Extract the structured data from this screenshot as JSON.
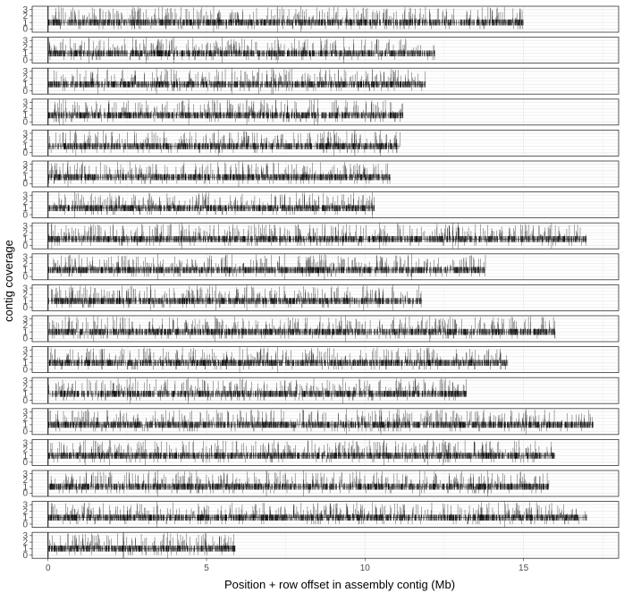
{
  "chart_data": {
    "type": "multi-panel coverage track",
    "xlabel": "Position + row offset in assembly contig (Mb)",
    "ylabel": "contig coverage",
    "x_ticks": [
      0,
      5,
      10,
      15
    ],
    "xlim": [
      -0.5,
      18.0
    ],
    "y_ticks": [
      0,
      1,
      2,
      3
    ],
    "ylim": [
      -0.5,
      3.5
    ],
    "grid": true,
    "legend": "none",
    "colors": {
      "mark": "#000000",
      "grid": "#ebebeb",
      "panel_border": "#333333",
      "text": "#4d4d4d"
    },
    "panels": [
      {
        "row": 1,
        "length_mb": 15.0
      },
      {
        "row": 2,
        "length_mb": 12.2
      },
      {
        "row": 3,
        "length_mb": 11.9
      },
      {
        "row": 4,
        "length_mb": 11.2
      },
      {
        "row": 5,
        "length_mb": 11.1
      },
      {
        "row": 6,
        "length_mb": 10.8
      },
      {
        "row": 7,
        "length_mb": 10.3
      },
      {
        "row": 8,
        "length_mb": 17.0
      },
      {
        "row": 9,
        "length_mb": 13.8
      },
      {
        "row": 10,
        "length_mb": 11.8
      },
      {
        "row": 11,
        "length_mb": 16.0
      },
      {
        "row": 12,
        "length_mb": 14.5
      },
      {
        "row": 13,
        "length_mb": 13.2
      },
      {
        "row": 14,
        "length_mb": 17.2
      },
      {
        "row": 15,
        "length_mb": 16.0
      },
      {
        "row": 16,
        "length_mb": 15.8
      },
      {
        "row": 17,
        "length_mb": 17.0
      },
      {
        "row": 18,
        "length_mb": 5.9
      }
    ]
  }
}
